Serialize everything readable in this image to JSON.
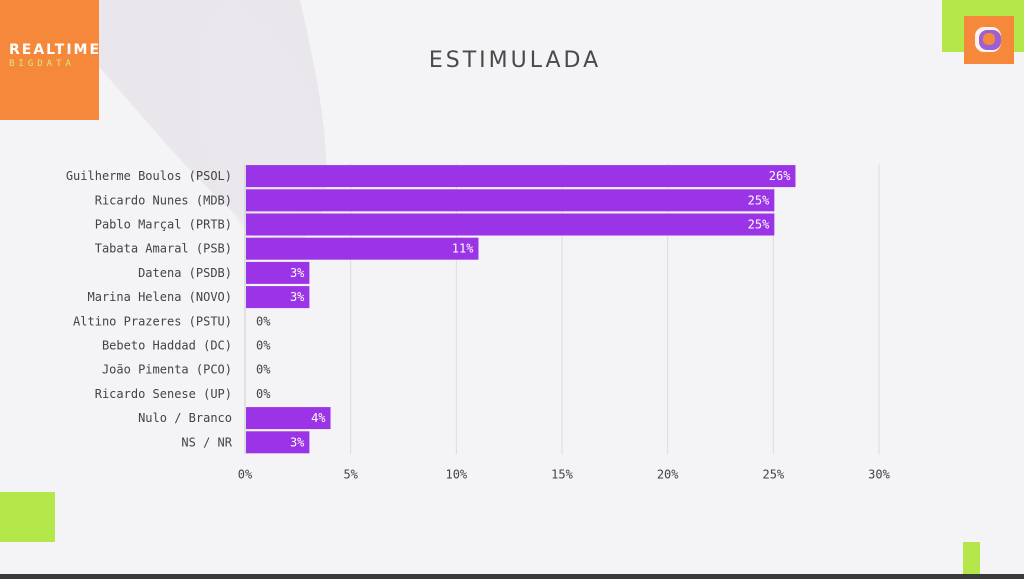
{
  "brand": {
    "name": "REALTIME",
    "sub": "BIGDATA",
    "colors": {
      "orange": "#f5883a",
      "green": "#b4e84a",
      "purple": "#9b33e6"
    }
  },
  "corner_icon": "tv-logo-icon",
  "chart_data": {
    "type": "bar",
    "orientation": "horizontal",
    "title": "ESTIMULADA",
    "categories": [
      "Guilherme Boulos (PSOL)",
      "Ricardo Nunes (MDB)",
      "Pablo Marçal (PRTB)",
      "Tabata Amaral (PSB)",
      "Datena (PSDB)",
      "Marina Helena (NOVO)",
      "Altino Prazeres (PSTU)",
      "Bebeto Haddad (DC)",
      "João Pimenta (PCO)",
      "Ricardo Senese (UP)",
      "Nulo / Branco",
      "NS / NR"
    ],
    "values": [
      26,
      25,
      25,
      11,
      3,
      3,
      0,
      0,
      0,
      0,
      4,
      3
    ],
    "value_labels": [
      "26%",
      "25%",
      "25%",
      "11%",
      "3%",
      "3%",
      "0%",
      "0%",
      "0%",
      "0%",
      "4%",
      "3%"
    ],
    "xlim": [
      0,
      30
    ],
    "xticks": [
      0,
      5,
      10,
      15,
      20,
      25,
      30
    ],
    "xtick_labels": [
      "0%",
      "5%",
      "10%",
      "15%",
      "20%",
      "25%",
      "30%"
    ],
    "grid": true,
    "bar_color": "#9b33e6"
  }
}
